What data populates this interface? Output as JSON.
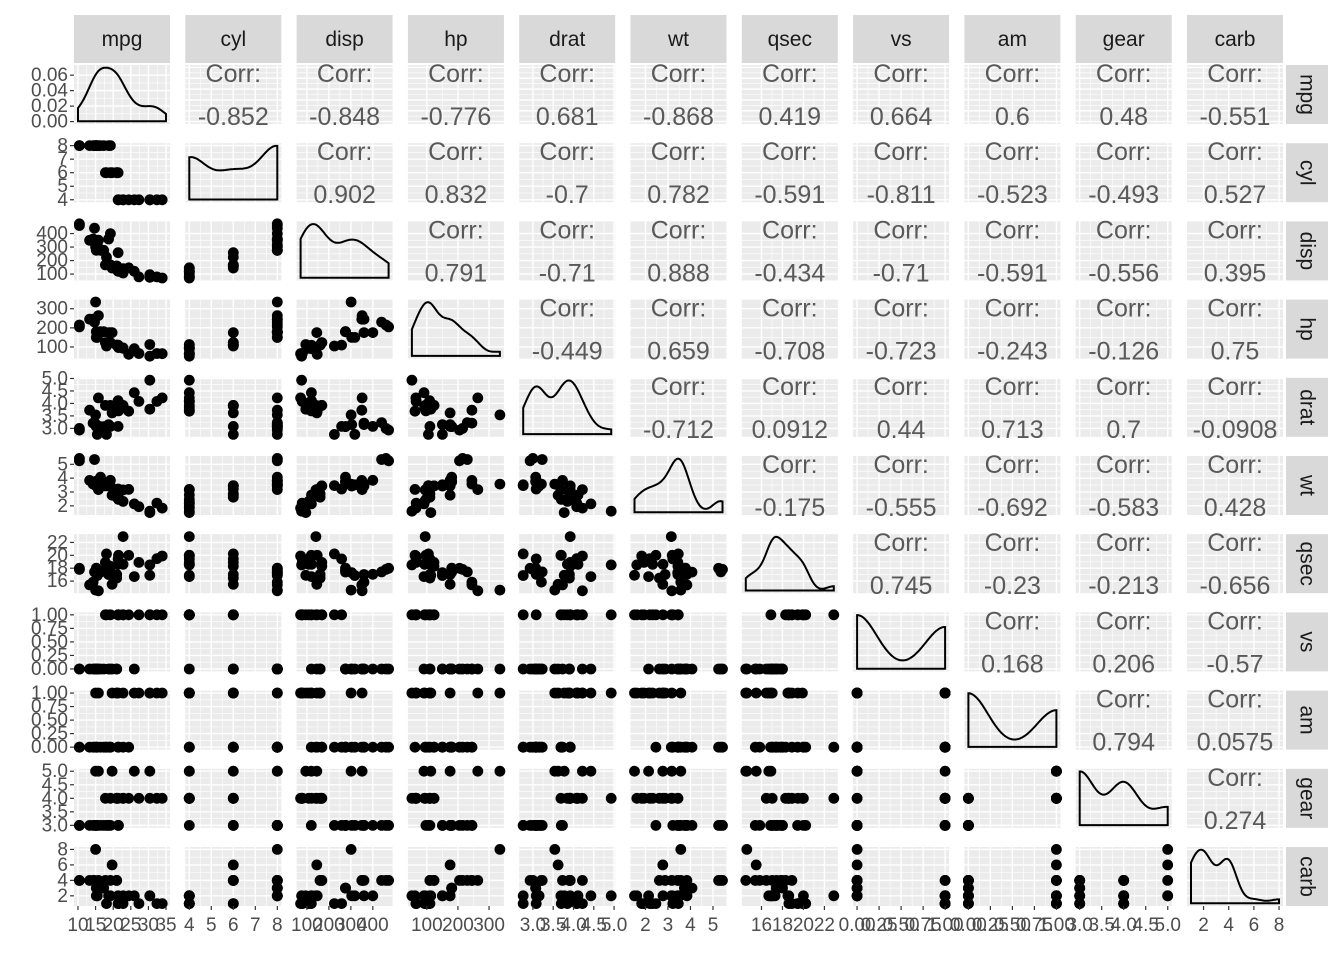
{
  "chart_data": {
    "type": "scatter-matrix",
    "variables": [
      "mpg",
      "cyl",
      "disp",
      "hp",
      "drat",
      "wt",
      "qsec",
      "vs",
      "am",
      "gear",
      "carb"
    ],
    "corr_label": "Corr:",
    "grid": true,
    "strip_position": "top and right",
    "axes": {
      "mpg": {
        "range": [
          10,
          35
        ],
        "ticks": [
          {
            "v": 10,
            "label": "10"
          },
          {
            "v": 15,
            "label": "15"
          },
          {
            "v": 20,
            "label": "20"
          },
          {
            "v": 25,
            "label": "25"
          },
          {
            "v": 30,
            "label": "30"
          },
          {
            "v": 35,
            "label": "35"
          }
        ]
      },
      "cyl": {
        "range": [
          4,
          8
        ],
        "ticks": [
          {
            "v": 4,
            "label": "4"
          },
          {
            "v": 5,
            "label": "5"
          },
          {
            "v": 6,
            "label": "6"
          },
          {
            "v": 7,
            "label": "7"
          },
          {
            "v": 8,
            "label": "8"
          }
        ]
      },
      "disp": {
        "range": [
          71.1,
          472
        ],
        "ticks": [
          {
            "v": 100,
            "label": "100"
          },
          {
            "v": 200,
            "label": "200"
          },
          {
            "v": 300,
            "label": "300"
          },
          {
            "v": 400,
            "label": "400"
          }
        ]
      },
      "hp": {
        "range": [
          52,
          335
        ],
        "ticks": [
          {
            "v": 100,
            "label": "100"
          },
          {
            "v": 200,
            "label": "200"
          },
          {
            "v": 300,
            "label": "300"
          }
        ]
      },
      "drat": {
        "range": [
          2.76,
          4.93
        ],
        "ticks": [
          {
            "v": 3.0,
            "label": "3.0"
          },
          {
            "v": 3.5,
            "label": "3.5"
          },
          {
            "v": 4.0,
            "label": "4.0"
          },
          {
            "v": 4.5,
            "label": "4.5"
          },
          {
            "v": 5.0,
            "label": "5.0"
          }
        ]
      },
      "wt": {
        "range": [
          1.513,
          5.424
        ],
        "ticks": [
          {
            "v": 2,
            "label": "2"
          },
          {
            "v": 3,
            "label": "3"
          },
          {
            "v": 4,
            "label": "4"
          },
          {
            "v": 5,
            "label": "5"
          }
        ]
      },
      "qsec": {
        "range": [
          14.5,
          22.9
        ],
        "ticks": [
          {
            "v": 16,
            "label": "16"
          },
          {
            "v": 18,
            "label": "18"
          },
          {
            "v": 20,
            "label": "20"
          },
          {
            "v": 22,
            "label": "22"
          }
        ]
      },
      "vs": {
        "range": [
          0,
          1
        ],
        "ticks": [
          {
            "v": 0,
            "label": "0.00"
          },
          {
            "v": 0.25,
            "label": "0.25"
          },
          {
            "v": 0.5,
            "label": "0.50"
          },
          {
            "v": 0.75,
            "label": "0.75"
          },
          {
            "v": 1,
            "label": "1.00"
          }
        ]
      },
      "am": {
        "range": [
          0,
          1
        ],
        "ticks": [
          {
            "v": 0,
            "label": "0.00"
          },
          {
            "v": 0.25,
            "label": "0.25"
          },
          {
            "v": 0.5,
            "label": "0.50"
          },
          {
            "v": 0.75,
            "label": "0.75"
          },
          {
            "v": 1,
            "label": "1.00"
          }
        ]
      },
      "gear": {
        "range": [
          3,
          5
        ],
        "ticks": [
          {
            "v": 3,
            "label": "3.0"
          },
          {
            "v": 3.5,
            "label": "3.5"
          },
          {
            "v": 4,
            "label": "4.0"
          },
          {
            "v": 4.5,
            "label": "4.5"
          },
          {
            "v": 5,
            "label": "5.0"
          }
        ]
      },
      "carb": {
        "range": [
          1,
          8
        ],
        "ticks": [
          {
            "v": 2,
            "label": "2"
          },
          {
            "v": 4,
            "label": "4"
          },
          {
            "v": 6,
            "label": "6"
          },
          {
            "v": 8,
            "label": "8"
          }
        ]
      }
    },
    "density_axis_mpg": {
      "range": [
        0,
        0.07
      ],
      "ticks": [
        {
          "v": 0,
          "label": "0.00"
        },
        {
          "v": 0.02,
          "label": "0.02"
        },
        {
          "v": 0.04,
          "label": "0.04"
        },
        {
          "v": 0.06,
          "label": "0.06"
        }
      ]
    },
    "correlations": [
      {
        "row": "mpg",
        "col": "cyl",
        "value": "-0.852"
      },
      {
        "row": "mpg",
        "col": "disp",
        "value": "-0.848"
      },
      {
        "row": "mpg",
        "col": "hp",
        "value": "-0.776"
      },
      {
        "row": "mpg",
        "col": "drat",
        "value": "0.681"
      },
      {
        "row": "mpg",
        "col": "wt",
        "value": "-0.868"
      },
      {
        "row": "mpg",
        "col": "qsec",
        "value": "0.419"
      },
      {
        "row": "mpg",
        "col": "vs",
        "value": "0.664"
      },
      {
        "row": "mpg",
        "col": "am",
        "value": "0.6"
      },
      {
        "row": "mpg",
        "col": "gear",
        "value": "0.48"
      },
      {
        "row": "mpg",
        "col": "carb",
        "value": "-0.551"
      },
      {
        "row": "cyl",
        "col": "disp",
        "value": "0.902"
      },
      {
        "row": "cyl",
        "col": "hp",
        "value": "0.832"
      },
      {
        "row": "cyl",
        "col": "drat",
        "value": "-0.7"
      },
      {
        "row": "cyl",
        "col": "wt",
        "value": "0.782"
      },
      {
        "row": "cyl",
        "col": "qsec",
        "value": "-0.591"
      },
      {
        "row": "cyl",
        "col": "vs",
        "value": "-0.811"
      },
      {
        "row": "cyl",
        "col": "am",
        "value": "-0.523"
      },
      {
        "row": "cyl",
        "col": "gear",
        "value": "-0.493"
      },
      {
        "row": "cyl",
        "col": "carb",
        "value": "0.527"
      },
      {
        "row": "disp",
        "col": "hp",
        "value": "0.791"
      },
      {
        "row": "disp",
        "col": "drat",
        "value": "-0.71"
      },
      {
        "row": "disp",
        "col": "wt",
        "value": "0.888"
      },
      {
        "row": "disp",
        "col": "qsec",
        "value": "-0.434"
      },
      {
        "row": "disp",
        "col": "vs",
        "value": "-0.71"
      },
      {
        "row": "disp",
        "col": "am",
        "value": "-0.591"
      },
      {
        "row": "disp",
        "col": "gear",
        "value": "-0.556"
      },
      {
        "row": "disp",
        "col": "carb",
        "value": "0.395"
      },
      {
        "row": "hp",
        "col": "drat",
        "value": "-0.449"
      },
      {
        "row": "hp",
        "col": "wt",
        "value": "0.659"
      },
      {
        "row": "hp",
        "col": "qsec",
        "value": "-0.708"
      },
      {
        "row": "hp",
        "col": "vs",
        "value": "-0.723"
      },
      {
        "row": "hp",
        "col": "am",
        "value": "-0.243"
      },
      {
        "row": "hp",
        "col": "gear",
        "value": "-0.126"
      },
      {
        "row": "hp",
        "col": "carb",
        "value": "0.75"
      },
      {
        "row": "drat",
        "col": "wt",
        "value": "-0.712"
      },
      {
        "row": "drat",
        "col": "qsec",
        "value": "0.0912"
      },
      {
        "row": "drat",
        "col": "vs",
        "value": "0.44"
      },
      {
        "row": "drat",
        "col": "am",
        "value": "0.713"
      },
      {
        "row": "drat",
        "col": "gear",
        "value": "0.7"
      },
      {
        "row": "drat",
        "col": "carb",
        "value": "-0.0908"
      },
      {
        "row": "wt",
        "col": "qsec",
        "value": "-0.175"
      },
      {
        "row": "wt",
        "col": "vs",
        "value": "-0.555"
      },
      {
        "row": "wt",
        "col": "am",
        "value": "-0.692"
      },
      {
        "row": "wt",
        "col": "gear",
        "value": "-0.583"
      },
      {
        "row": "wt",
        "col": "carb",
        "value": "0.428"
      },
      {
        "row": "qsec",
        "col": "vs",
        "value": "0.745"
      },
      {
        "row": "qsec",
        "col": "am",
        "value": "-0.23"
      },
      {
        "row": "qsec",
        "col": "gear",
        "value": "-0.213"
      },
      {
        "row": "qsec",
        "col": "carb",
        "value": "-0.656"
      },
      {
        "row": "vs",
        "col": "am",
        "value": "0.168"
      },
      {
        "row": "vs",
        "col": "gear",
        "value": "0.206"
      },
      {
        "row": "vs",
        "col": "carb",
        "value": "-0.57"
      },
      {
        "row": "am",
        "col": "gear",
        "value": "0.794"
      },
      {
        "row": "am",
        "col": "carb",
        "value": "0.0575"
      },
      {
        "row": "gear",
        "col": "carb",
        "value": "0.274"
      }
    ],
    "observations": {
      "mpg": [
        21,
        21,
        22.8,
        21.4,
        18.7,
        18.1,
        14.3,
        24.4,
        22.8,
        19.2,
        17.8,
        16.4,
        17.3,
        15.2,
        10.4,
        10.4,
        14.7,
        32.4,
        30.4,
        33.9,
        21.5,
        15.5,
        15.2,
        13.3,
        19.2,
        27.3,
        26,
        30.4,
        15.8,
        19.7,
        15,
        21.4
      ],
      "cyl": [
        6,
        6,
        4,
        6,
        8,
        6,
        8,
        4,
        4,
        6,
        6,
        8,
        8,
        8,
        8,
        8,
        8,
        4,
        4,
        4,
        4,
        8,
        8,
        8,
        8,
        4,
        4,
        4,
        8,
        6,
        8,
        4
      ],
      "disp": [
        160,
        160,
        108,
        258,
        360,
        225,
        360,
        146.7,
        140.8,
        167.6,
        167.6,
        275.8,
        275.8,
        275.8,
        472,
        460,
        440,
        78.7,
        75.7,
        71.1,
        120.1,
        318,
        304,
        350,
        400,
        79,
        120.3,
        95.1,
        351,
        145,
        301,
        121
      ],
      "hp": [
        110,
        110,
        93,
        110,
        175,
        105,
        245,
        62,
        95,
        123,
        123,
        180,
        180,
        180,
        205,
        215,
        230,
        66,
        52,
        65,
        97,
        150,
        150,
        245,
        175,
        66,
        91,
        113,
        264,
        175,
        335,
        109
      ],
      "drat": [
        3.9,
        3.9,
        3.85,
        3.08,
        3.15,
        2.76,
        3.21,
        3.69,
        3.92,
        3.92,
        3.92,
        3.07,
        3.07,
        3.07,
        2.93,
        3,
        3.23,
        4.08,
        4.93,
        4.22,
        3.7,
        2.76,
        3.15,
        3.73,
        3.08,
        4.08,
        4.43,
        3.77,
        4.22,
        3.62,
        3.54,
        4.11
      ],
      "wt": [
        2.62,
        2.875,
        2.32,
        3.215,
        3.44,
        3.46,
        3.57,
        3.19,
        3.15,
        3.44,
        3.44,
        4.07,
        3.73,
        3.78,
        5.25,
        5.424,
        5.345,
        2.2,
        1.615,
        1.835,
        2.465,
        3.52,
        3.435,
        3.84,
        3.845,
        1.935,
        2.14,
        1.513,
        3.17,
        2.77,
        3.57,
        2.78
      ],
      "qsec": [
        16.46,
        17.02,
        18.61,
        19.44,
        17.02,
        20.22,
        15.84,
        20,
        22.9,
        18.3,
        18.9,
        17.4,
        17.6,
        18,
        17.98,
        17.82,
        17.42,
        19.47,
        18.52,
        19.9,
        20.01,
        16.87,
        17.3,
        15.41,
        17.05,
        18.9,
        16.7,
        16.9,
        14.5,
        15.5,
        14.6,
        18.6
      ],
      "vs": [
        0,
        0,
        1,
        1,
        0,
        1,
        0,
        1,
        1,
        1,
        1,
        0,
        0,
        0,
        0,
        0,
        0,
        1,
        1,
        1,
        1,
        0,
        0,
        0,
        0,
        1,
        0,
        1,
        0,
        0,
        0,
        1
      ],
      "am": [
        1,
        1,
        1,
        0,
        0,
        0,
        0,
        0,
        0,
        0,
        0,
        0,
        0,
        0,
        0,
        0,
        0,
        1,
        1,
        1,
        0,
        0,
        0,
        0,
        0,
        1,
        1,
        1,
        1,
        1,
        1,
        1
      ],
      "gear": [
        4,
        4,
        4,
        3,
        3,
        3,
        3,
        4,
        4,
        4,
        4,
        3,
        3,
        3,
        3,
        3,
        3,
        4,
        4,
        4,
        3,
        3,
        3,
        3,
        3,
        4,
        5,
        5,
        5,
        5,
        5,
        4
      ],
      "carb": [
        4,
        4,
        1,
        1,
        2,
        1,
        4,
        2,
        2,
        4,
        4,
        3,
        3,
        3,
        4,
        4,
        4,
        1,
        2,
        1,
        1,
        2,
        2,
        4,
        2,
        1,
        2,
        2,
        4,
        6,
        8,
        2
      ]
    }
  }
}
